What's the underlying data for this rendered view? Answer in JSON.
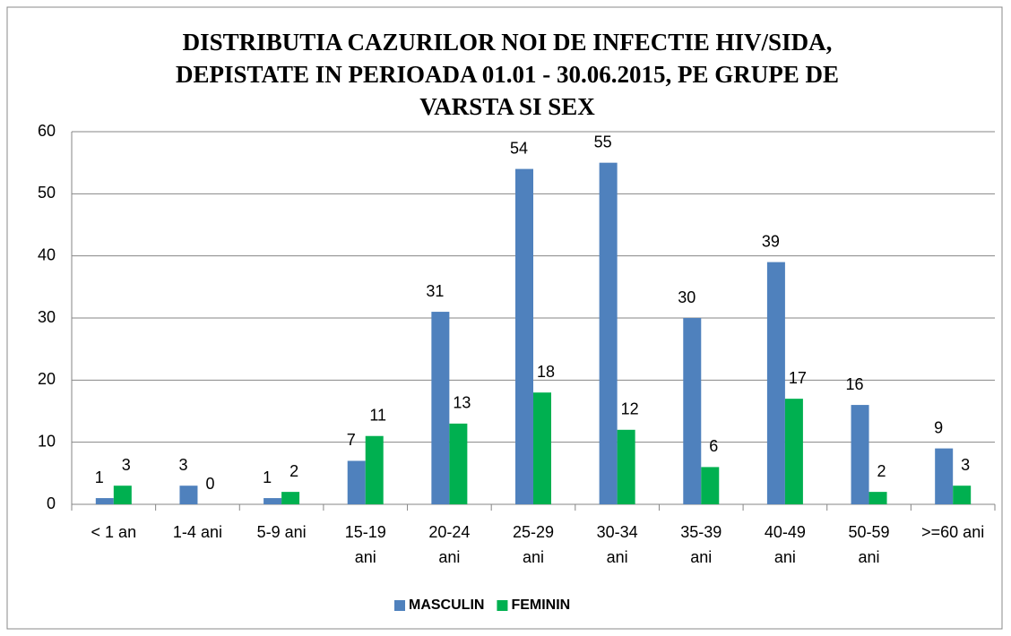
{
  "chart_data": {
    "type": "bar",
    "title": [
      "DISTRIBUTIA CAZURILOR NOI DE INFECTIE HIV/SIDA,",
      "DEPISTATE IN PERIOADA 01.01 - 30.06.2015, PE GRUPE DE",
      "VARSTA SI SEX"
    ],
    "categories": [
      "< 1 an",
      "1-4 ani",
      "5-9 ani",
      "15-19 ani",
      "20-24 ani",
      "25-29 ani",
      "30-34 ani",
      "35-39 ani",
      "40-49 ani",
      "50-59 ani",
      ">=60 ani"
    ],
    "series": [
      {
        "name": "MASCULIN",
        "color": "#4f81bd",
        "values": [
          1,
          3,
          1,
          7,
          31,
          54,
          55,
          30,
          39,
          16,
          9
        ]
      },
      {
        "name": "FEMININ",
        "color": "#00b050",
        "values": [
          3,
          0,
          2,
          11,
          13,
          18,
          12,
          6,
          17,
          2,
          3
        ]
      }
    ],
    "ylim": [
      0,
      60
    ],
    "yticks": [
      0,
      10,
      20,
      30,
      40,
      50,
      60
    ],
    "grid": true,
    "legend": "bottom"
  }
}
